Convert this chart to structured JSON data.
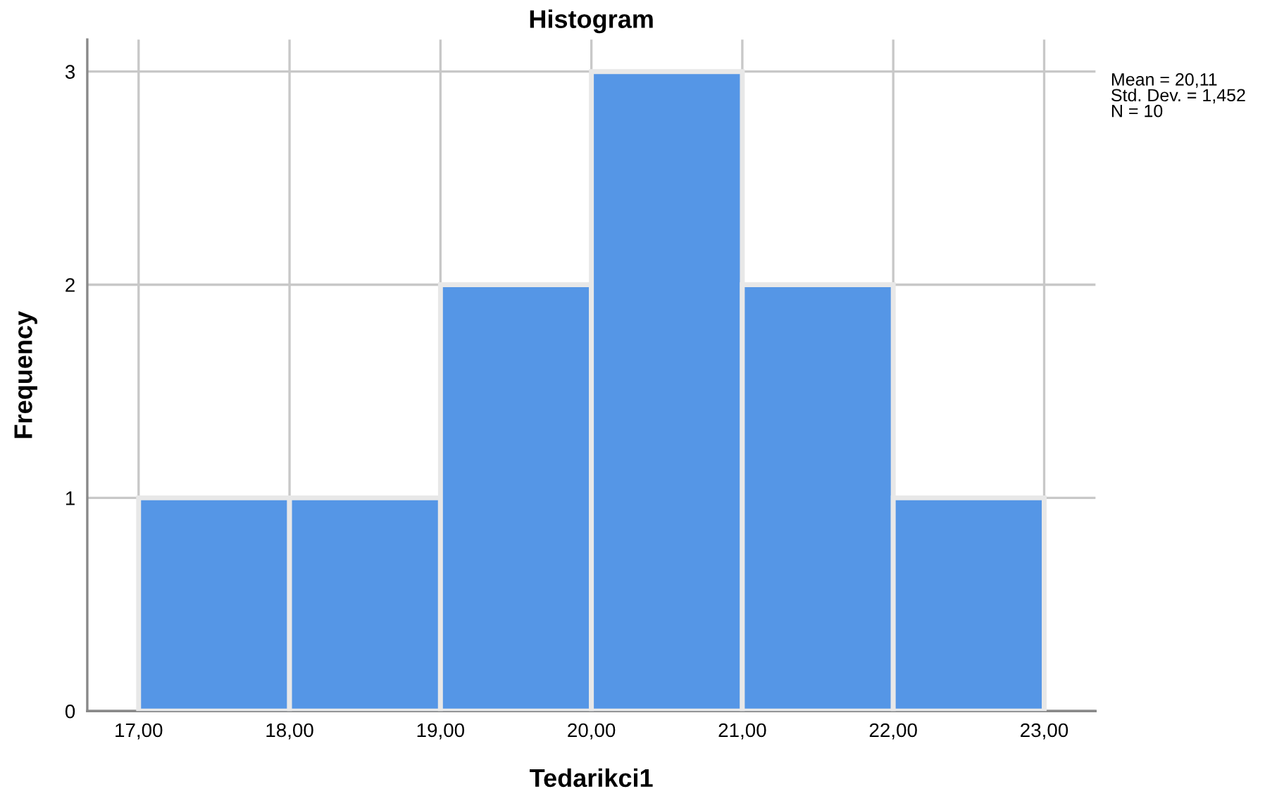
{
  "chart_data": {
    "type": "histogram",
    "title": "Histogram",
    "xlabel": "Tedarikci1",
    "ylabel": "Frequency",
    "bins": [
      17,
      18,
      19,
      20,
      21,
      22,
      23
    ],
    "values": [
      1,
      1,
      2,
      3,
      2,
      1
    ],
    "color": "#5596e6",
    "xlim": [
      16.66,
      23.34
    ],
    "ylim": [
      0,
      3.15
    ],
    "xticks": [
      {
        "value": 17,
        "label": "17,00"
      },
      {
        "value": 18,
        "label": "18,00"
      },
      {
        "value": 19,
        "label": "19,00"
      },
      {
        "value": 20,
        "label": "20,00"
      },
      {
        "value": 21,
        "label": "21,00"
      },
      {
        "value": 22,
        "label": "22,00"
      },
      {
        "value": 23,
        "label": "23,00"
      }
    ],
    "yticks": [
      0,
      1,
      2,
      3
    ],
    "grid": true,
    "annotations": [
      "Mean = 20,11\nStd. Dev. = 1,452\nN = 10"
    ]
  }
}
